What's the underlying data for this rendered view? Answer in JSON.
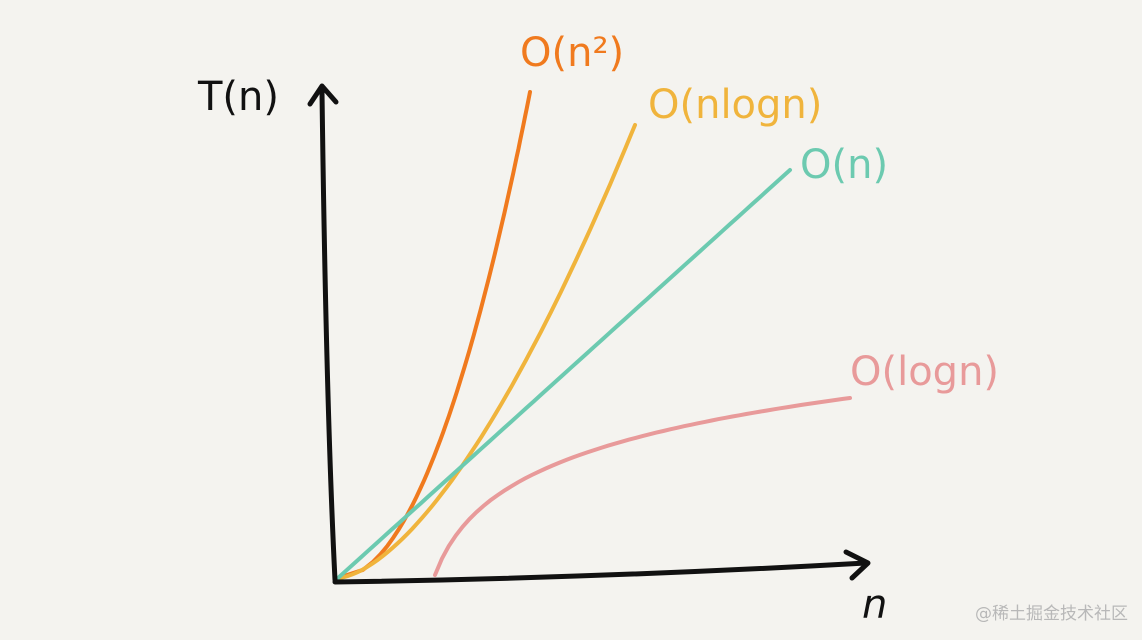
{
  "chart_data": {
    "type": "line",
    "title": "",
    "xlabel": "n",
    "ylabel": "T(n)",
    "grid": false,
    "legend": "inline labels at curve ends",
    "series": [
      {
        "name": "O(n²)",
        "function": "n^2",
        "color": "#f07a1e"
      },
      {
        "name": "O(nlogn)",
        "function": "n*log(n)",
        "color": "#f0b43c"
      },
      {
        "name": "O(n)",
        "function": "n",
        "color": "#6ccab0"
      },
      {
        "name": "O(logn)",
        "function": "log(n)",
        "color": "#e89a9a"
      }
    ]
  },
  "axis_color": "#111111",
  "watermark": "@稀土掘金技术社区"
}
